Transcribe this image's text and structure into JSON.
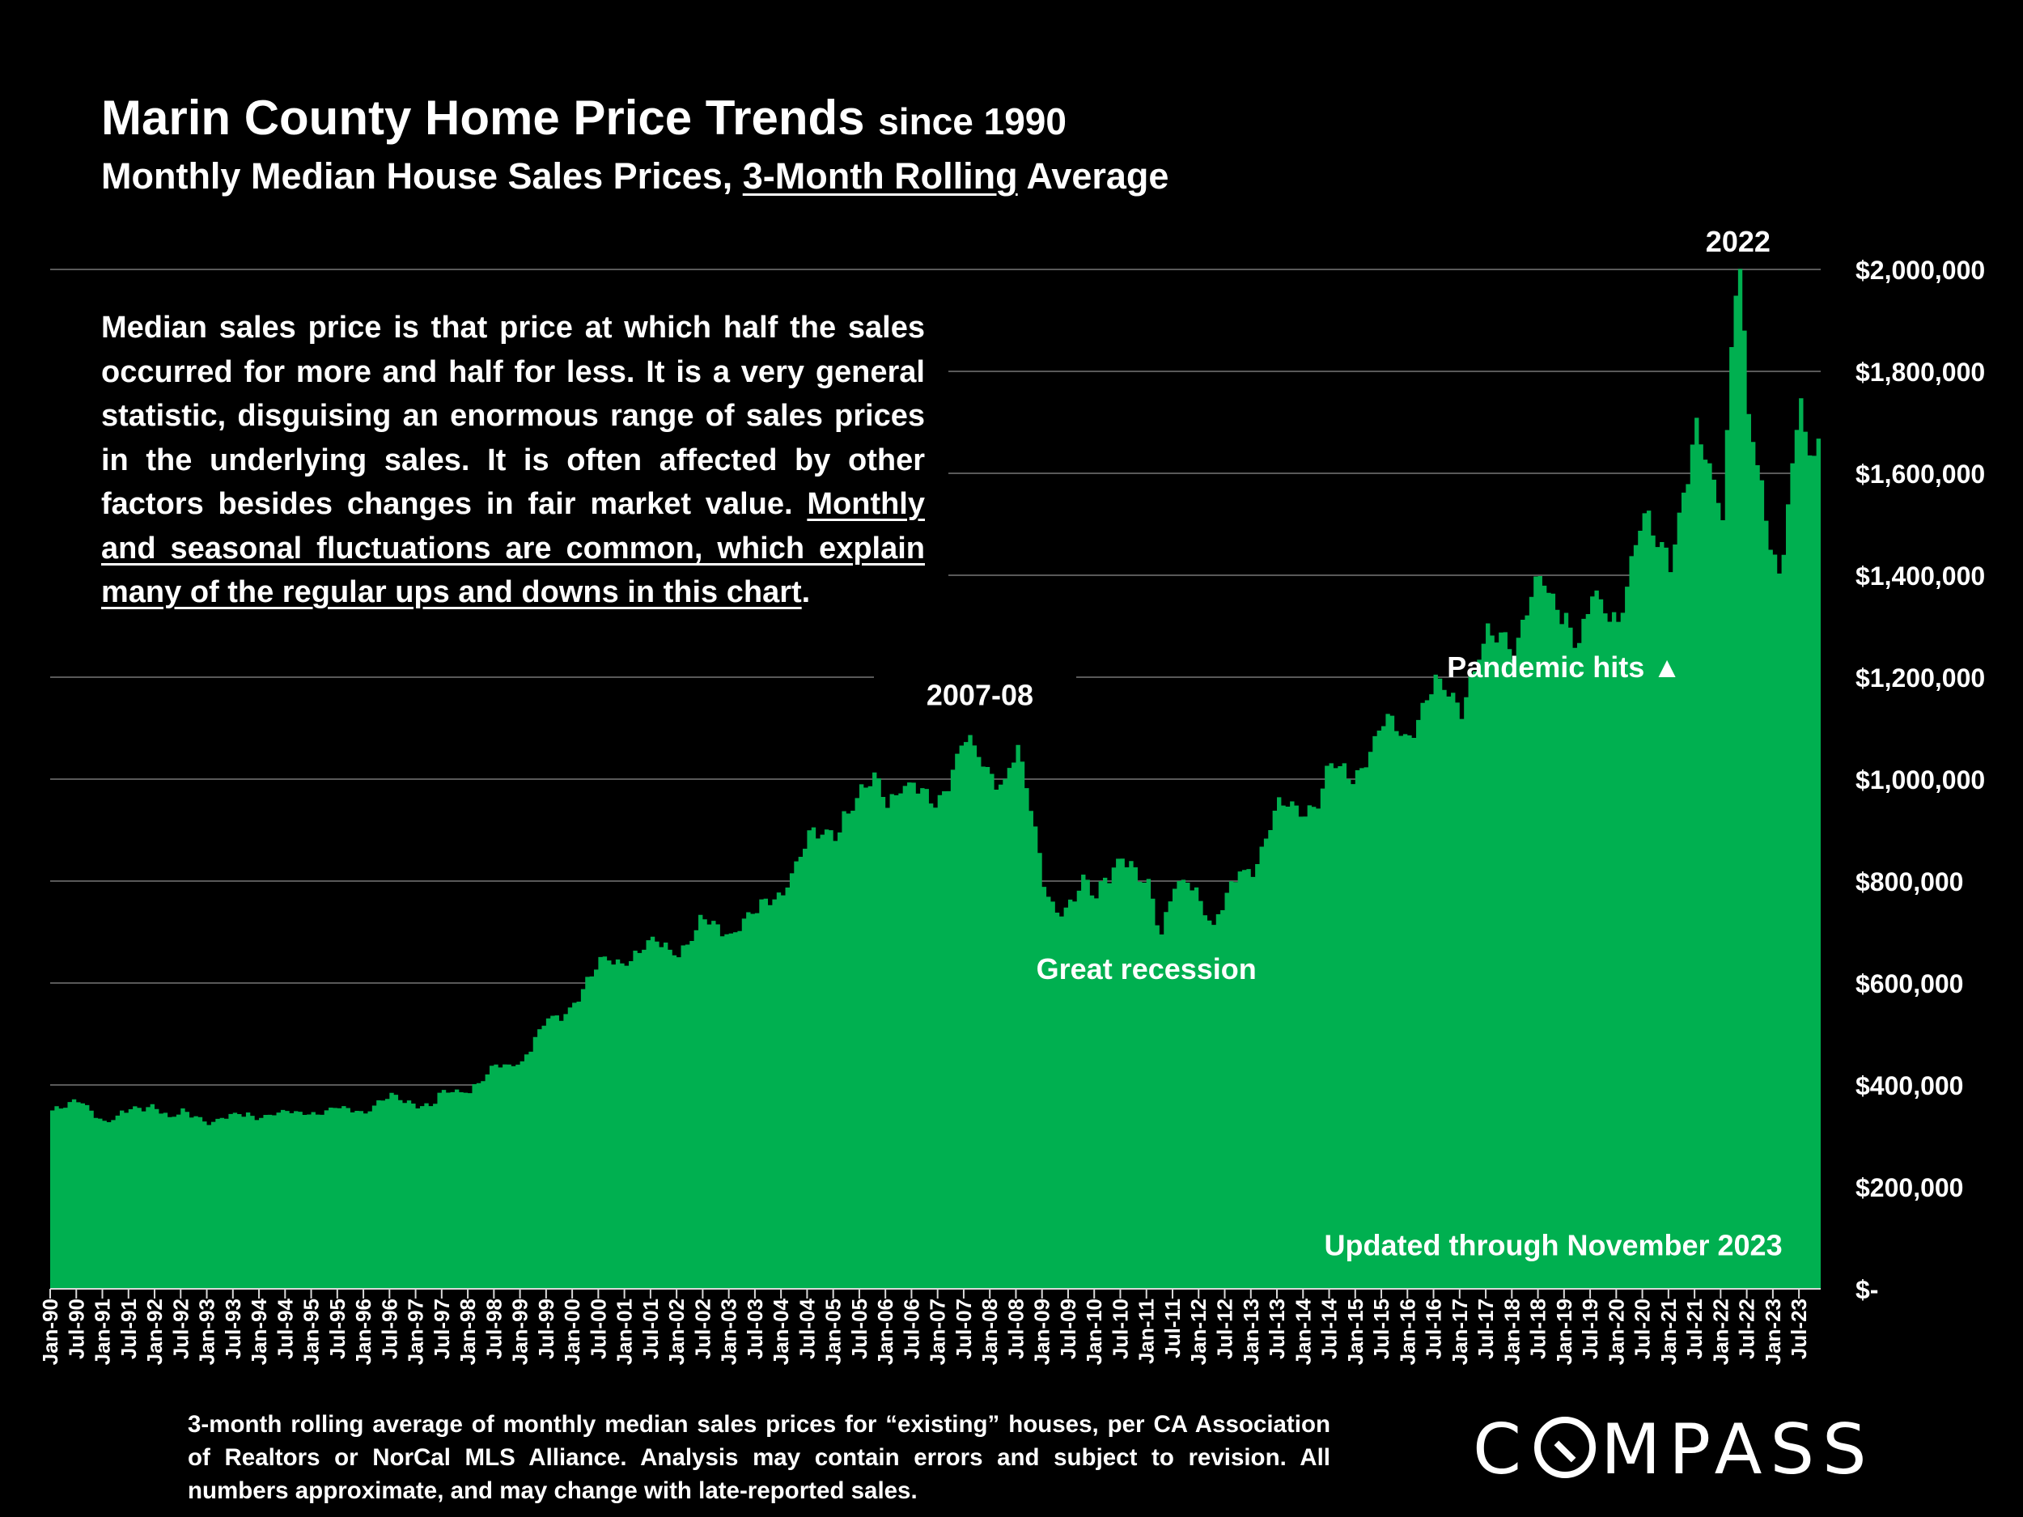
{
  "header": {
    "title": "Marin County Home Price Trends",
    "title_suffix": "since 1990",
    "subtitle_pre": "Monthly Median House Sales Prices, ",
    "subtitle_underlined": "3-Month Rolling",
    "subtitle_post": " Average"
  },
  "description": {
    "plain": "Median sales price is that price at which half the sales occurred for more and half for less. It is a very general statistic, disguising an enormous range of sales prices in the underlying sales. It is often affected by other factors besides changes in fair market value. ",
    "underlined": "Monthly and seasonal fluctuations are common, which explain many of the regular ups and downs in this chart",
    "end": "."
  },
  "footnote": "3-month rolling average of monthly median sales prices for “existing” houses, per CA Association of Realtors or NorCal MLS Alliance. Analysis may contain errors and subject to revision. All numbers approximate, and may change with late-reported sales.",
  "logo": {
    "text": "COMPASS",
    "pre": "C",
    "post": "MPASS"
  },
  "colors": {
    "fill": "#00B050",
    "background": "#000000",
    "grid": "#595959",
    "text": "#FFFFFF"
  },
  "chart_data": {
    "type": "area",
    "title": "Marin County Home Price Trends since 1990",
    "subtitle": "Monthly Median House Sales Prices, 3-Month Rolling Average",
    "xlabel": "",
    "ylabel": "",
    "ylim": [
      0,
      2000000
    ],
    "y_ticks": [
      0,
      200000,
      400000,
      600000,
      800000,
      1000000,
      1200000,
      1400000,
      1600000,
      1800000,
      2000000
    ],
    "y_tick_labels": [
      "$-",
      "$200,000",
      "$400,000",
      "$600,000",
      "$800,000",
      "$1,000,000",
      "$1,200,000",
      "$1,400,000",
      "$1,600,000",
      "$1,800,000",
      "$2,000,000"
    ],
    "grid": true,
    "x_start": "Jan-90",
    "x_end": "Nov-23",
    "x_tick_labels": [
      "Jan-90",
      "Jul-90",
      "Jan-91",
      "Jul-91",
      "Jan-92",
      "Jul-92",
      "Jan-93",
      "Jul-93",
      "Jan-94",
      "Jul-94",
      "Jan-95",
      "Jul-95",
      "Jan-96",
      "Jul-96",
      "Jan-97",
      "Jul-97",
      "Jan-98",
      "Jul-98",
      "Jan-99",
      "Jul-99",
      "Jan-00",
      "Jul-00",
      "Jan-01",
      "Jul-01",
      "Jan-02",
      "Jul-02",
      "Jan-03",
      "Jul-03",
      "Jan-04",
      "Jul-04",
      "Jan-05",
      "Jul-05",
      "Jan-06",
      "Jul-06",
      "Jan-07",
      "Jul-07",
      "Jan-08",
      "Jul-08",
      "Jan-09",
      "Jul-09",
      "Jan-10",
      "Jul-10",
      "Jan-11",
      "Jul-11",
      "Jan-12",
      "Jul-12",
      "Jan-13",
      "Jul-13",
      "Jan-14",
      "Jul-14",
      "Jan-15",
      "Jul-15",
      "Jan-16",
      "Jul-16",
      "Jan-17",
      "Jul-17",
      "Jan-18",
      "Jul-18",
      "Jan-19",
      "Jul-19",
      "Jan-20",
      "Jul-20",
      "Jan-21",
      "Jul-21",
      "Jan-22",
      "Jul-22",
      "Jan-23",
      "Jul-23"
    ],
    "series_name": "3-month rolling average median house sales price",
    "anchors": [
      [
        "Jan-90",
        350000
      ],
      [
        "Jul-90",
        372000
      ],
      [
        "Jan-91",
        325000
      ],
      [
        "Jul-91",
        355000
      ],
      [
        "Jan-92",
        355000
      ],
      [
        "Apr-92",
        335000
      ],
      [
        "Jul-92",
        350000
      ],
      [
        "Jan-93",
        325000
      ],
      [
        "Jul-93",
        345000
      ],
      [
        "Jan-94",
        335000
      ],
      [
        "Jul-94",
        352000
      ],
      [
        "Jan-95",
        340000
      ],
      [
        "Jul-95",
        358000
      ],
      [
        "Jan-96",
        345000
      ],
      [
        "Jul-96",
        380000
      ],
      [
        "Jan-97",
        360000
      ],
      [
        "Apr-97",
        358000
      ],
      [
        "Jul-97",
        390000
      ],
      [
        "Jan-98",
        385000
      ],
      [
        "Jul-98",
        440000
      ],
      [
        "Jan-99",
        440000
      ],
      [
        "Jul-99",
        540000
      ],
      [
        "Oct-99",
        528000
      ],
      [
        "Jan-00",
        560000
      ],
      [
        "Jul-00",
        650000
      ],
      [
        "Jan-01",
        640000
      ],
      [
        "Jul-01",
        690000
      ],
      [
        "Jan-02",
        650000
      ],
      [
        "Jul-02",
        735000
      ],
      [
        "Jan-03",
        690000
      ],
      [
        "Jul-03",
        750000
      ],
      [
        "Jan-04",
        770000
      ],
      [
        "Jul-04",
        890000
      ],
      [
        "Jan-05",
        890000
      ],
      [
        "Jul-05",
        975000
      ],
      [
        "Oct-05",
        1005000
      ],
      [
        "Jan-06",
        955000
      ],
      [
        "Jul-06",
        995000
      ],
      [
        "Jan-07",
        950000
      ],
      [
        "Jul-07",
        1090000
      ],
      [
        "Jan-08",
        1000000
      ],
      [
        "Apr-08",
        990000
      ],
      [
        "Jul-08",
        1070000
      ],
      [
        "Oct-08",
        950000
      ],
      [
        "Jan-09",
        800000
      ],
      [
        "Apr-09",
        735000
      ],
      [
        "Jul-09",
        750000
      ],
      [
        "Oct-09",
        810000
      ],
      [
        "Jan-10",
        775000
      ],
      [
        "Jul-10",
        850000
      ],
      [
        "Jan-11",
        790000
      ],
      [
        "Apr-11",
        690000
      ],
      [
        "Jul-11",
        800000
      ],
      [
        "Oct-11",
        800000
      ],
      [
        "Jan-12",
        760000
      ],
      [
        "Apr-12",
        710000
      ],
      [
        "Jul-12",
        770000
      ],
      [
        "Oct-12",
        825000
      ],
      [
        "Jan-13",
        810000
      ],
      [
        "Jul-13",
        960000
      ],
      [
        "Jan-14",
        930000
      ],
      [
        "Apr-14",
        960000
      ],
      [
        "Jul-14",
        1030000
      ],
      [
        "Jan-15",
        1000000
      ],
      [
        "Jul-15",
        1120000
      ],
      [
        "Jan-16",
        1080000
      ],
      [
        "Jul-16",
        1200000
      ],
      [
        "Jan-17",
        1140000
      ],
      [
        "Jul-17",
        1300000
      ],
      [
        "Jan-18",
        1250000
      ],
      [
        "Jul-18",
        1400000
      ],
      [
        "Jan-19",
        1310000
      ],
      [
        "Apr-19",
        1260000
      ],
      [
        "Jul-19",
        1370000
      ],
      [
        "Jan-20",
        1310000
      ],
      [
        "Jul-20",
        1530000
      ],
      [
        "Jan-21",
        1430000
      ],
      [
        "Jul-21",
        1690000
      ],
      [
        "Jan-22",
        1520000
      ],
      [
        "Mar-22",
        1830000
      ],
      [
        "Apr-22",
        1980000
      ],
      [
        "May-22",
        2000000
      ],
      [
        "Jul-22",
        1720000
      ],
      [
        "Jan-23",
        1420000
      ],
      [
        "Feb-23",
        1390000
      ],
      [
        "Jul-23",
        1760000
      ],
      [
        "Sep-23",
        1620000
      ],
      [
        "Oct-23",
        1650000
      ],
      [
        "Nov-23",
        1700000
      ]
    ],
    "annotations": [
      {
        "text": "2022",
        "x": "May-22",
        "y": 2000000
      },
      {
        "text": "2007-08",
        "x": "Jul-07",
        "y": 1090000
      },
      {
        "text": "Pandemic hits ▲",
        "x": "Mar-20",
        "y": 1200000
      },
      {
        "text": "Great recession",
        "x": "Jan-11",
        "y": 600000
      },
      {
        "text": "Updated through November 2023",
        "x": "Nov-23",
        "y": 50000
      }
    ]
  }
}
